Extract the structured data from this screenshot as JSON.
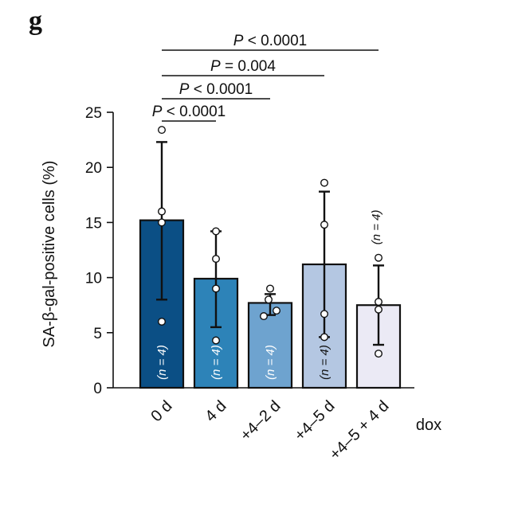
{
  "panel_letter": "g",
  "chart_data": {
    "type": "bar",
    "ylabel": "SA-β-gal-positive cells (%)",
    "xlabel": "dox",
    "ylim": [
      0,
      25
    ],
    "yticks": [
      0,
      5,
      10,
      15,
      20,
      25
    ],
    "categories": [
      "0 d",
      "4 d",
      "+4–2 d",
      "+4–5 d",
      "+4–5 + 4 d"
    ],
    "values": [
      15.2,
      9.9,
      7.7,
      11.2,
      7.5
    ],
    "error_low": [
      8.0,
      5.5,
      6.6,
      4.6,
      3.9
    ],
    "error_high": [
      22.3,
      14.2,
      8.5,
      17.8,
      11.1
    ],
    "points": [
      [
        23.4,
        16.0,
        15.0,
        6.0
      ],
      [
        14.2,
        11.7,
        9.0,
        4.3
      ],
      [
        9.0,
        8.0,
        7.0,
        6.5
      ],
      [
        18.6,
        14.8,
        6.7,
        4.6
      ],
      [
        11.8,
        7.8,
        7.1,
        3.1
      ]
    ],
    "colors": [
      "#0b4f85",
      "#2d83b8",
      "#6ea3cf",
      "#b4c7e2",
      "#ebeaf5"
    ],
    "n_labels": [
      "(n = 4)",
      "(n = 4)",
      "(n = 4)",
      "(n = 4)",
      "(n = 4)"
    ],
    "comparisons": [
      {
        "label": "P < 0.0001",
        "from": 0,
        "to": 1
      },
      {
        "label": "P < 0.0001",
        "from": 0,
        "to": 2
      },
      {
        "label": "P = 0.004",
        "from": 0,
        "to": 3
      },
      {
        "label": "P < 0.0001",
        "from": 0,
        "to": 4
      }
    ]
  }
}
